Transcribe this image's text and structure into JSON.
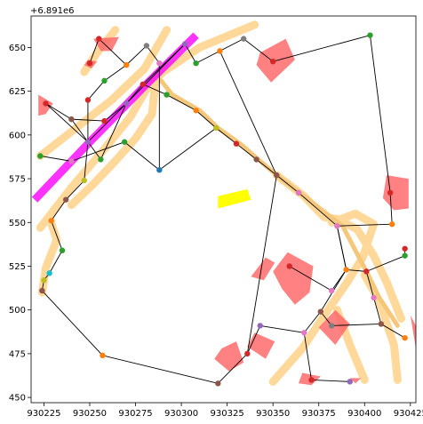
{
  "chart_data": {
    "type": "scatter",
    "title": "",
    "xlabel": "",
    "ylabel": "",
    "y_offset_text": "+6.891e6",
    "xlim": [
      930218,
      930428
    ],
    "ylim": [
      447,
      668
    ],
    "x_ticks": [
      930225,
      930250,
      930275,
      930300,
      930325,
      930350,
      930375,
      930400,
      930425
    ],
    "x_tick_labels": [
      "930225",
      "930250",
      "930275",
      "930300",
      "930325",
      "930350",
      "930375",
      "930400",
      "930425"
    ],
    "y_ticks": [
      450,
      475,
      500,
      525,
      550,
      575,
      600,
      625,
      650
    ],
    "y_tick_labels": [
      "450",
      "475",
      "500",
      "525",
      "550",
      "575",
      "600",
      "625",
      "650"
    ],
    "grid": false,
    "colors": {
      "roads": "#ffd89a",
      "buildings": "#ff6b6b",
      "magenta_road": "#ff00ff",
      "yellow_patch": "#ffff00",
      "route": "#f5c77a",
      "edges": "#000000"
    },
    "roads": [
      [
        [
          930223,
          588
        ],
        [
          930245,
          606
        ],
        [
          930262,
          620
        ],
        [
          930280,
          638
        ],
        [
          930292,
          660
        ]
      ],
      [
        [
          930223,
          547
        ],
        [
          930240,
          570
        ],
        [
          930258,
          592
        ],
        [
          930272,
          610
        ],
        [
          930282,
          628
        ],
        [
          930290,
          636
        ],
        [
          930310,
          650
        ],
        [
          930340,
          663
        ]
      ],
      [
        [
          930224,
          510
        ],
        [
          930226,
          524
        ],
        [
          930232,
          540
        ],
        [
          930228,
          553
        ]
      ],
      [
        [
          930264,
          660
        ],
        [
          930254,
          647
        ],
        [
          930247,
          636
        ]
      ],
      [
        [
          930286,
          632
        ],
        [
          930284,
          612
        ],
        [
          930275,
          598
        ],
        [
          930263,
          584
        ],
        [
          930252,
          572
        ],
        [
          930240,
          560
        ]
      ],
      [
        [
          930352,
          577
        ],
        [
          930367,
          565
        ],
        [
          930378,
          553
        ],
        [
          930385,
          552
        ],
        [
          930396,
          546
        ],
        [
          930405,
          531
        ],
        [
          930412,
          516
        ],
        [
          930420,
          495
        ]
      ],
      [
        [
          930350,
          459
        ],
        [
          930366,
          478
        ],
        [
          930380,
          500
        ],
        [
          930390,
          515
        ],
        [
          930399,
          530
        ],
        [
          930405,
          549
        ],
        [
          930395,
          555
        ],
        [
          930382,
          550
        ]
      ],
      [
        [
          930400,
          520
        ],
        [
          930408,
          505
        ],
        [
          930416,
          480
        ],
        [
          930418,
          460
        ]
      ],
      [
        [
          930385,
          500
        ],
        [
          930392,
          480
        ],
        [
          930400,
          460
        ]
      ]
    ],
    "magenta_road": [
      [
        930220,
        563
      ],
      [
        930250,
        596
      ],
      [
        930280,
        628
      ],
      [
        930308,
        657
      ]
    ],
    "buildings": [
      [
        [
          930252,
          655
        ],
        [
          930266,
          656
        ],
        [
          930262,
          648
        ],
        [
          930256,
          648
        ]
      ],
      [
        [
          930249,
          643
        ],
        [
          930254,
          642
        ],
        [
          930251,
          638
        ],
        [
          930247,
          640
        ]
      ],
      [
        [
          930222,
          623
        ],
        [
          930230,
          618
        ],
        [
          930226,
          612
        ],
        [
          930222,
          611
        ]
      ],
      [
        [
          930343,
          647
        ],
        [
          930357,
          655
        ],
        [
          930362,
          643
        ],
        [
          930349,
          630
        ],
        [
          930341,
          640
        ]
      ],
      [
        [
          930412,
          577
        ],
        [
          930424,
          575
        ],
        [
          930424,
          558
        ],
        [
          930416,
          557
        ],
        [
          930410,
          564
        ]
      ],
      [
        [
          930350,
          522
        ],
        [
          930358,
          533
        ],
        [
          930372,
          525
        ],
        [
          930370,
          510
        ],
        [
          930362,
          503
        ],
        [
          930355,
          512
        ]
      ],
      [
        [
          930338,
          519
        ],
        [
          930346,
          530
        ],
        [
          930351,
          527
        ],
        [
          930345,
          517
        ]
      ],
      [
        [
          930340,
          487
        ],
        [
          930351,
          482
        ],
        [
          930346,
          472
        ],
        [
          930336,
          479
        ]
      ],
      [
        [
          930375,
          490
        ],
        [
          930384,
          500
        ],
        [
          930392,
          492
        ],
        [
          930384,
          480
        ]
      ],
      [
        [
          930322,
          478
        ],
        [
          930330,
          482
        ],
        [
          930334,
          470
        ],
        [
          930326,
          465
        ],
        [
          930318,
          472
        ]
      ],
      [
        [
          930366,
          464
        ],
        [
          930376,
          462
        ],
        [
          930371,
          457
        ],
        [
          930364,
          458
        ]
      ],
      [
        [
          930392,
          461
        ],
        [
          930398,
          461
        ],
        [
          930395,
          458
        ]
      ],
      [
        [
          930425,
          497
        ],
        [
          930428,
          491
        ],
        [
          930428,
          478
        ]
      ]
    ],
    "yellow_patch": [
      [
        930320,
        558
      ],
      [
        930338,
        563
      ],
      [
        930336,
        569
      ],
      [
        930320,
        565
      ]
    ],
    "route": [
      [
        930289,
        631
      ],
      [
        930295,
        623
      ],
      [
        930310,
        614
      ],
      [
        930320,
        604
      ],
      [
        930332,
        595
      ],
      [
        930342,
        586
      ],
      [
        930352,
        577
      ],
      [
        930367,
        565
      ],
      [
        930388,
        548
      ],
      [
        930402,
        520
      ],
      [
        930408,
        507
      ],
      [
        930418,
        491
      ]
    ],
    "nodes": [
      {
        "id": "n01",
        "x": 930223,
        "y": 588,
        "color": "#2ca02c"
      },
      {
        "id": "n02",
        "x": 930226,
        "y": 618,
        "color": "#d62728"
      },
      {
        "id": "n03",
        "x": 930229,
        "y": 551,
        "color": "#ff7f0e"
      },
      {
        "id": "n04",
        "x": 930225,
        "y": 517,
        "color": "#bcbd22"
      },
      {
        "id": "n05",
        "x": 930228,
        "y": 521,
        "color": "#17becf"
      },
      {
        "id": "n06",
        "x": 930224,
        "y": 511,
        "color": "#8c564b"
      },
      {
        "id": "n07",
        "x": 930235,
        "y": 534,
        "color": "#2ca02c"
      },
      {
        "id": "n08",
        "x": 930237,
        "y": 563,
        "color": "#8c564b"
      },
      {
        "id": "n09",
        "x": 930240,
        "y": 585,
        "color": "#e377c2"
      },
      {
        "id": "n10",
        "x": 930240,
        "y": 609,
        "color": "#8c564b"
      },
      {
        "id": "n11",
        "x": 930247,
        "y": 574,
        "color": "#bcbd22"
      },
      {
        "id": "n12",
        "x": 930249,
        "y": 596,
        "color": "#9467bd"
      },
      {
        "id": "n13",
        "x": 930249,
        "y": 620,
        "color": "#d62728"
      },
      {
        "id": "n14",
        "x": 930250,
        "y": 641,
        "color": "#d62728"
      },
      {
        "id": "n15",
        "x": 930255,
        "y": 655,
        "color": "#d62728"
      },
      {
        "id": "n16",
        "x": 930256,
        "y": 586,
        "color": "#2ca02c"
      },
      {
        "id": "n17",
        "x": 930258,
        "y": 608,
        "color": "#d62728"
      },
      {
        "id": "n18",
        "x": 930258,
        "y": 631,
        "color": "#2ca02c"
      },
      {
        "id": "n19",
        "x": 930257,
        "y": 474,
        "color": "#ff7f0e"
      },
      {
        "id": "n20",
        "x": 930269,
        "y": 596,
        "color": "#2ca02c"
      },
      {
        "id": "n21",
        "x": 930270,
        "y": 618,
        "color": "#9467bd"
      },
      {
        "id": "n22",
        "x": 930270,
        "y": 640,
        "color": "#ff7f0e"
      },
      {
        "id": "n23",
        "x": 930279,
        "y": 629,
        "color": "#d62728"
      },
      {
        "id": "n24",
        "x": 930281,
        "y": 651,
        "color": "#7f7f7f"
      },
      {
        "id": "n25",
        "x": 930288,
        "y": 641,
        "color": "#e377c2"
      },
      {
        "id": "n26",
        "x": 930288,
        "y": 580,
        "color": "#1f77b4"
      },
      {
        "id": "n27",
        "x": 930292,
        "y": 623,
        "color": "#2ca02c"
      },
      {
        "id": "n28",
        "x": 930302,
        "y": 652,
        "color": "#9467bd"
      },
      {
        "id": "n29",
        "x": 930308,
        "y": 641,
        "color": "#2ca02c"
      },
      {
        "id": "n30",
        "x": 930308,
        "y": 614,
        "color": "#ff7f0e"
      },
      {
        "id": "n31",
        "x": 930319,
        "y": 604,
        "color": "#bcbd22"
      },
      {
        "id": "n32",
        "x": 930321,
        "y": 648,
        "color": "#ff7f0e"
      },
      {
        "id": "n33",
        "x": 930320,
        "y": 458,
        "color": "#8c564b"
      },
      {
        "id": "n34",
        "x": 930330,
        "y": 595,
        "color": "#d62728"
      },
      {
        "id": "n35",
        "x": 930334,
        "y": 655,
        "color": "#7f7f7f"
      },
      {
        "id": "n36",
        "x": 930336,
        "y": 475,
        "color": "#d62728"
      },
      {
        "id": "n37",
        "x": 930341,
        "y": 586,
        "color": "#8c564b"
      },
      {
        "id": "n38",
        "x": 930343,
        "y": 491,
        "color": "#9467bd"
      },
      {
        "id": "n39",
        "x": 930350,
        "y": 642,
        "color": "#d62728"
      },
      {
        "id": "n40",
        "x": 930352,
        "y": 577,
        "color": "#8c564b"
      },
      {
        "id": "n41",
        "x": 930359,
        "y": 525,
        "color": "#d62728"
      },
      {
        "id": "n42",
        "x": 930364,
        "y": 567,
        "color": "#e377c2"
      },
      {
        "id": "n43",
        "x": 930367,
        "y": 487,
        "color": "#e377c2"
      },
      {
        "id": "n44",
        "x": 930371,
        "y": 460,
        "color": "#d62728"
      },
      {
        "id": "n45",
        "x": 930376,
        "y": 499,
        "color": "#8c564b"
      },
      {
        "id": "n46",
        "x": 930382,
        "y": 511,
        "color": "#e377c2"
      },
      {
        "id": "n47",
        "x": 930382,
        "y": 491,
        "color": "#7f7f7f"
      },
      {
        "id": "n48",
        "x": 930385,
        "y": 548,
        "color": "#e377c2"
      },
      {
        "id": "n49",
        "x": 930390,
        "y": 523,
        "color": "#ff7f0e"
      },
      {
        "id": "n50",
        "x": 930392,
        "y": 459,
        "color": "#9467bd"
      },
      {
        "id": "n51",
        "x": 930401,
        "y": 522,
        "color": "#d62728"
      },
      {
        "id": "n52",
        "x": 930403,
        "y": 657,
        "color": "#2ca02c"
      },
      {
        "id": "n53",
        "x": 930405,
        "y": 507,
        "color": "#e377c2"
      },
      {
        "id": "n54",
        "x": 930409,
        "y": 492,
        "color": "#8c564b"
      },
      {
        "id": "n55",
        "x": 930414,
        "y": 567,
        "color": "#d62728"
      },
      {
        "id": "n56",
        "x": 930415,
        "y": 549,
        "color": "#ff7f0e"
      },
      {
        "id": "n57",
        "x": 930422,
        "y": 535,
        "color": "#d62728"
      },
      {
        "id": "n58",
        "x": 930422,
        "y": 531,
        "color": "#2ca02c"
      },
      {
        "id": "n59",
        "x": 930422,
        "y": 484,
        "color": "#ff7f0e"
      }
    ],
    "edges": [
      [
        "n01",
        "n09"
      ],
      [
        "n09",
        "n20"
      ],
      [
        "n20",
        "n26"
      ],
      [
        "n26",
        "n25"
      ],
      [
        "n25",
        "n24"
      ],
      [
        "n24",
        "n22"
      ],
      [
        "n22",
        "n15"
      ],
      [
        "n15",
        "n14"
      ],
      [
        "n22",
        "n18"
      ],
      [
        "n18",
        "n13"
      ],
      [
        "n13",
        "n12"
      ],
      [
        "n12",
        "n11"
      ],
      [
        "n11",
        "n08"
      ],
      [
        "n08",
        "n03"
      ],
      [
        "n03",
        "n07"
      ],
      [
        "n07",
        "n05"
      ],
      [
        "n05",
        "n04"
      ],
      [
        "n04",
        "n06"
      ],
      [
        "n06",
        "n19"
      ],
      [
        "n19",
        "n33"
      ],
      [
        "n33",
        "n36"
      ],
      [
        "n36",
        "n38"
      ],
      [
        "n38",
        "n43"
      ],
      [
        "n43",
        "n44"
      ],
      [
        "n44",
        "n50"
      ],
      [
        "n43",
        "n45"
      ],
      [
        "n45",
        "n47"
      ],
      [
        "n47",
        "n54"
      ],
      [
        "n54",
        "n59"
      ],
      [
        "n45",
        "n49"
      ],
      [
        "n49",
        "n46"
      ],
      [
        "n46",
        "n41"
      ],
      [
        "n49",
        "n51"
      ],
      [
        "n51",
        "n53"
      ],
      [
        "n53",
        "n54"
      ],
      [
        "n49",
        "n48"
      ],
      [
        "n48",
        "n56"
      ],
      [
        "n56",
        "n55"
      ],
      [
        "n55",
        "n52"
      ],
      [
        "n52",
        "n39"
      ],
      [
        "n39",
        "n35"
      ],
      [
        "n35",
        "n29"
      ],
      [
        "n29",
        "n28"
      ],
      [
        "n28",
        "n21"
      ],
      [
        "n21",
        "n12"
      ],
      [
        "n12",
        "n02"
      ],
      [
        "n02",
        "n10"
      ],
      [
        "n10",
        "n16"
      ],
      [
        "n16",
        "n21"
      ],
      [
        "n21",
        "n23"
      ],
      [
        "n23",
        "n27"
      ],
      [
        "n27",
        "n30"
      ],
      [
        "n30",
        "n31"
      ],
      [
        "n31",
        "n34"
      ],
      [
        "n34",
        "n37"
      ],
      [
        "n37",
        "n40"
      ],
      [
        "n40",
        "n42"
      ],
      [
        "n42",
        "n48"
      ],
      [
        "n31",
        "n26"
      ],
      [
        "n40",
        "n32"
      ],
      [
        "n17",
        "n21"
      ],
      [
        "n17",
        "n10"
      ],
      [
        "n23",
        "n28"
      ],
      [
        "n57",
        "n58"
      ],
      [
        "n58",
        "n51"
      ],
      [
        "n48",
        "n49"
      ],
      [
        "n40",
        "n36"
      ]
    ]
  }
}
